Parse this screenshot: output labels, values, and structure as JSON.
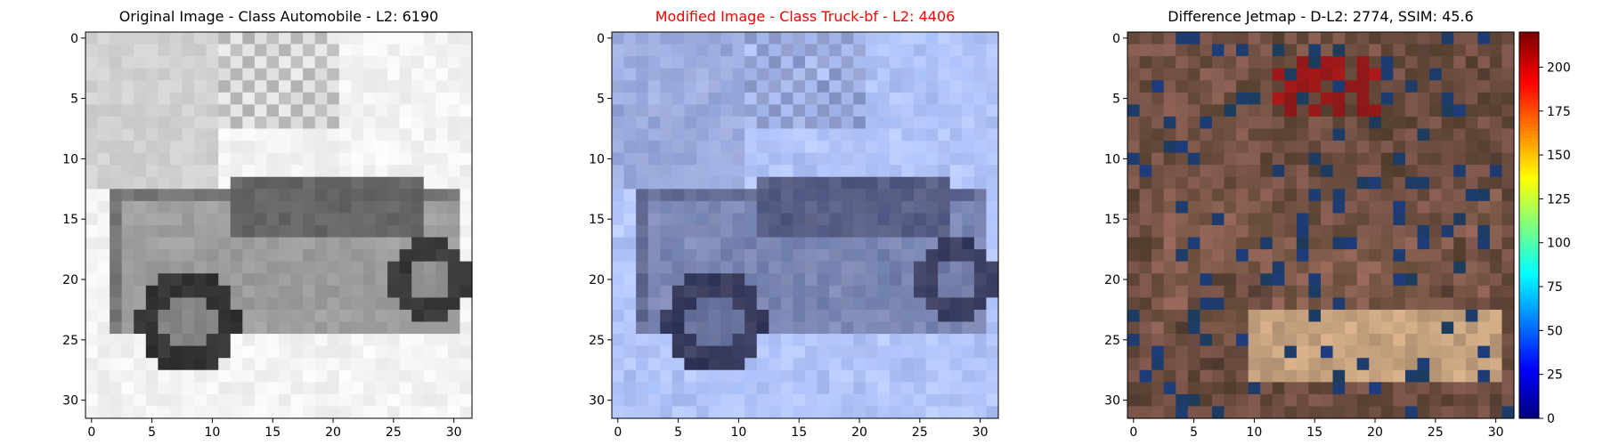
{
  "chart_data": [
    {
      "type": "heatmap",
      "title": "Original Image - Class Automobile - L2: 6190",
      "title_color": "#000000",
      "palette": "grayscale",
      "xlim": [
        -0.5,
        31.5
      ],
      "ylim": [
        31.5,
        -0.5
      ],
      "xticks": [
        "0",
        "5",
        "10",
        "15",
        "20",
        "25",
        "30"
      ],
      "yticks": [
        "0",
        "5",
        "10",
        "15",
        "20",
        "25",
        "30"
      ],
      "grid": false
    },
    {
      "type": "heatmap",
      "title": "Modified Image - Class Truck-bf - L2: 4406",
      "title_color": "#ff0000",
      "palette": "blue-gray photo",
      "xlim": [
        -0.5,
        31.5
      ],
      "ylim": [
        31.5,
        -0.5
      ],
      "xticks": [
        "0",
        "5",
        "10",
        "15",
        "20",
        "25",
        "30"
      ],
      "yticks": [
        "0",
        "5",
        "10",
        "15",
        "20",
        "25",
        "30"
      ],
      "grid": false
    },
    {
      "type": "heatmap",
      "title": "Difference Jetmap - D-L2: 2774, SSIM: 45.6",
      "title_color": "#000000",
      "palette": "dark brown",
      "xlim": [
        -0.5,
        31.5
      ],
      "ylim": [
        31.5,
        -0.5
      ],
      "xticks": [
        "0",
        "5",
        "10",
        "15",
        "20",
        "25",
        "30"
      ],
      "yticks": [
        "0",
        "5",
        "10",
        "15",
        "20",
        "25",
        "30"
      ],
      "grid": false,
      "colorbar": {
        "colormap": "jet",
        "range": [
          0,
          220
        ],
        "ticks": [
          "0",
          "25",
          "50",
          "75",
          "100",
          "125",
          "150",
          "175",
          "200"
        ]
      }
    }
  ]
}
